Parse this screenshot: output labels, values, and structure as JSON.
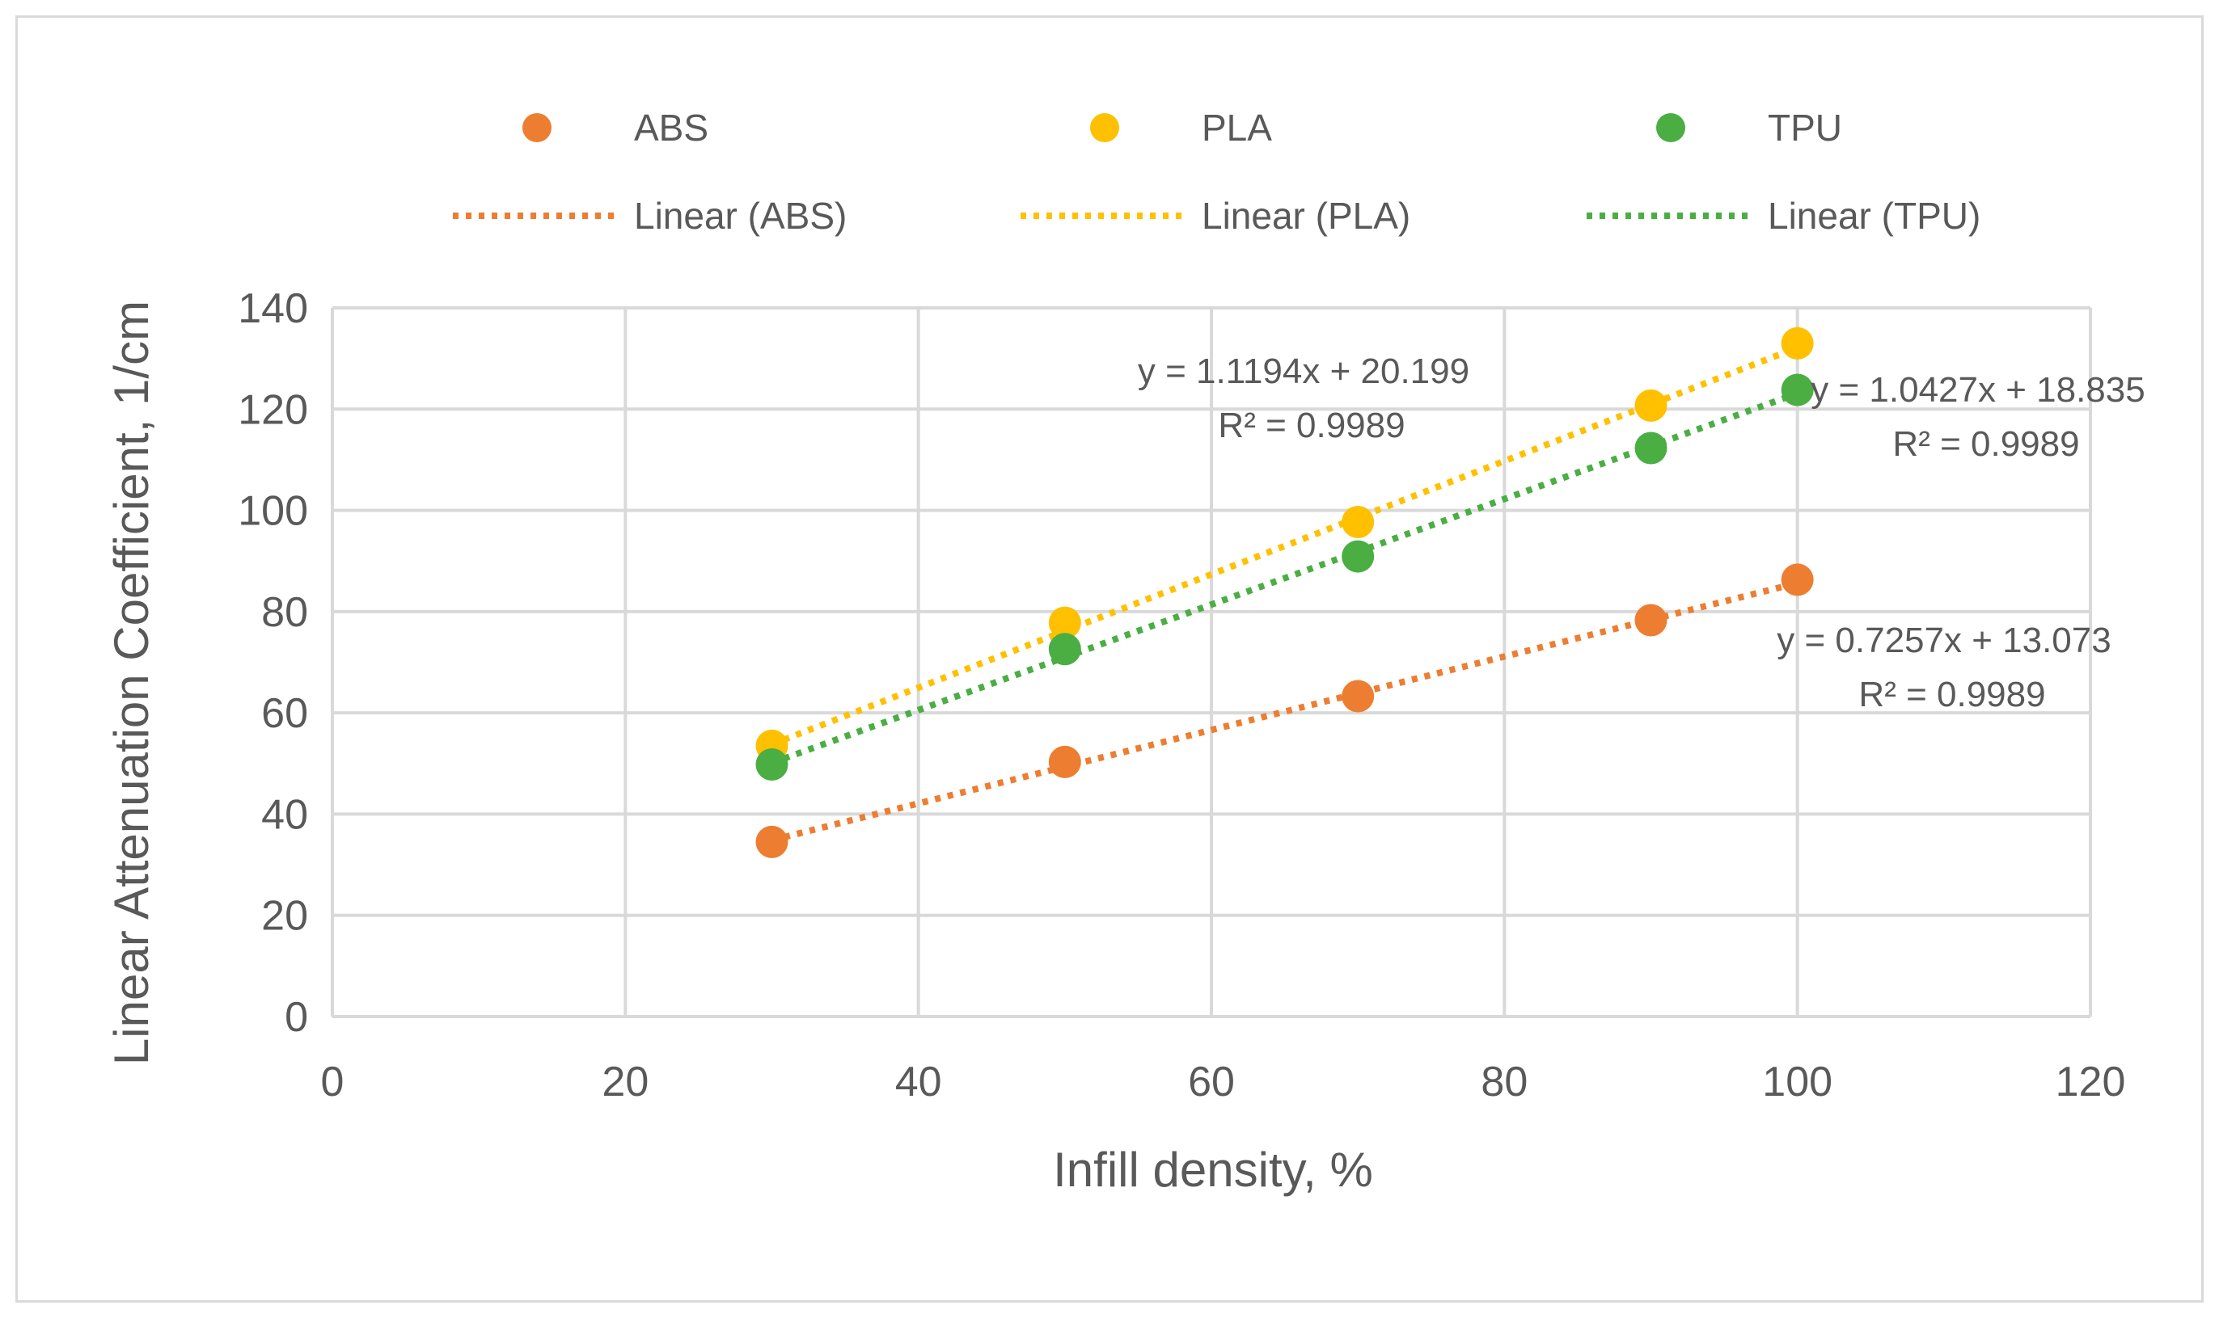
{
  "chart_data": {
    "type": "scatter",
    "title": "",
    "xlabel": "Infill density, %",
    "ylabel": "Linear Attenuation Coefficient, 1/cm",
    "xlim": [
      0,
      120
    ],
    "ylim": [
      0,
      140
    ],
    "xticks": [
      "0",
      "20",
      "40",
      "60",
      "80",
      "100",
      "120"
    ],
    "yticks": [
      "0",
      "20",
      "40",
      "60",
      "80",
      "100",
      "120",
      "140"
    ],
    "grid": true,
    "legend_position": "top",
    "series": [
      {
        "name": "ABS",
        "color": "#ED7D31",
        "x": [
          30,
          50,
          70,
          90,
          100
        ],
        "y": [
          34.5,
          50.3,
          63.3,
          78.3,
          86.3
        ],
        "trendline": {
          "name": "Linear (ABS)",
          "slope": 0.7257,
          "intercept": 13.073,
          "equation": "y = 0.7257x + 13.073",
          "r2": "R² = 0.9989"
        }
      },
      {
        "name": "PLA",
        "color": "#FFC000",
        "x": [
          30,
          50,
          70,
          90,
          100
        ],
        "y": [
          53.5,
          77.8,
          97.7,
          120.7,
          133.0
        ],
        "trendline": {
          "name": "Linear (PLA)",
          "slope": 1.1194,
          "intercept": 20.199,
          "equation": "y = 1.1194x + 20.199",
          "r2": "R² = 0.9989"
        }
      },
      {
        "name": "TPU",
        "color": "#4AAE43",
        "x": [
          30,
          50,
          70,
          90,
          100
        ],
        "y": [
          49.8,
          72.6,
          90.9,
          112.3,
          123.8
        ],
        "trendline": {
          "name": "Linear (TPU)",
          "slope": 1.0427,
          "intercept": 18.835,
          "equation": "y = 1.0427x + 18.835",
          "r2": "R² = 0.9989"
        }
      }
    ]
  }
}
